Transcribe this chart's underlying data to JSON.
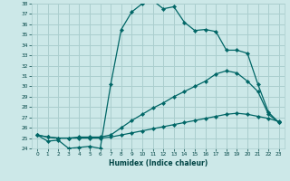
{
  "title": "",
  "xlabel": "Humidex (Indice chaleur)",
  "bg_color": "#cce8e8",
  "grid_color": "#aacece",
  "line_color": "#006666",
  "xlim": [
    -0.5,
    23.5
  ],
  "ylim": [
    24,
    38
  ],
  "xticks": [
    0,
    1,
    2,
    3,
    4,
    5,
    6,
    7,
    8,
    9,
    10,
    11,
    12,
    13,
    14,
    15,
    16,
    17,
    18,
    19,
    20,
    21,
    22,
    23
  ],
  "yticks": [
    24,
    25,
    26,
    27,
    28,
    29,
    30,
    31,
    32,
    33,
    34,
    35,
    36,
    37,
    38
  ],
  "line1_x": [
    0,
    1,
    2,
    3,
    4,
    5,
    6,
    7,
    8,
    9,
    10,
    11,
    12,
    13,
    14,
    15,
    16,
    17,
    18,
    19,
    20,
    21,
    22,
    23
  ],
  "line1_y": [
    25.3,
    24.7,
    24.8,
    24.0,
    24.1,
    24.2,
    24.0,
    30.2,
    35.5,
    37.2,
    38.0,
    38.3,
    37.5,
    37.7,
    36.2,
    35.4,
    35.5,
    35.3,
    33.5,
    33.5,
    33.2,
    30.2,
    27.5,
    26.5
  ],
  "line2_x": [
    0,
    1,
    2,
    3,
    4,
    5,
    6,
    7,
    8,
    9,
    10,
    11,
    12,
    13,
    14,
    15,
    16,
    17,
    18,
    19,
    20,
    21,
    22,
    23
  ],
  "line2_y": [
    25.3,
    25.1,
    25.0,
    25.0,
    25.1,
    25.1,
    25.1,
    25.3,
    26.0,
    26.7,
    27.3,
    27.9,
    28.4,
    29.0,
    29.5,
    30.0,
    30.5,
    31.2,
    31.5,
    31.3,
    30.5,
    29.5,
    27.3,
    26.5
  ],
  "line3_x": [
    0,
    1,
    2,
    3,
    4,
    5,
    6,
    7,
    8,
    9,
    10,
    11,
    12,
    13,
    14,
    15,
    16,
    17,
    18,
    19,
    20,
    21,
    22,
    23
  ],
  "line3_y": [
    25.3,
    25.1,
    25.0,
    25.0,
    25.0,
    25.0,
    25.0,
    25.1,
    25.3,
    25.5,
    25.7,
    25.9,
    26.1,
    26.3,
    26.5,
    26.7,
    26.9,
    27.1,
    27.3,
    27.4,
    27.3,
    27.1,
    26.9,
    26.6
  ]
}
